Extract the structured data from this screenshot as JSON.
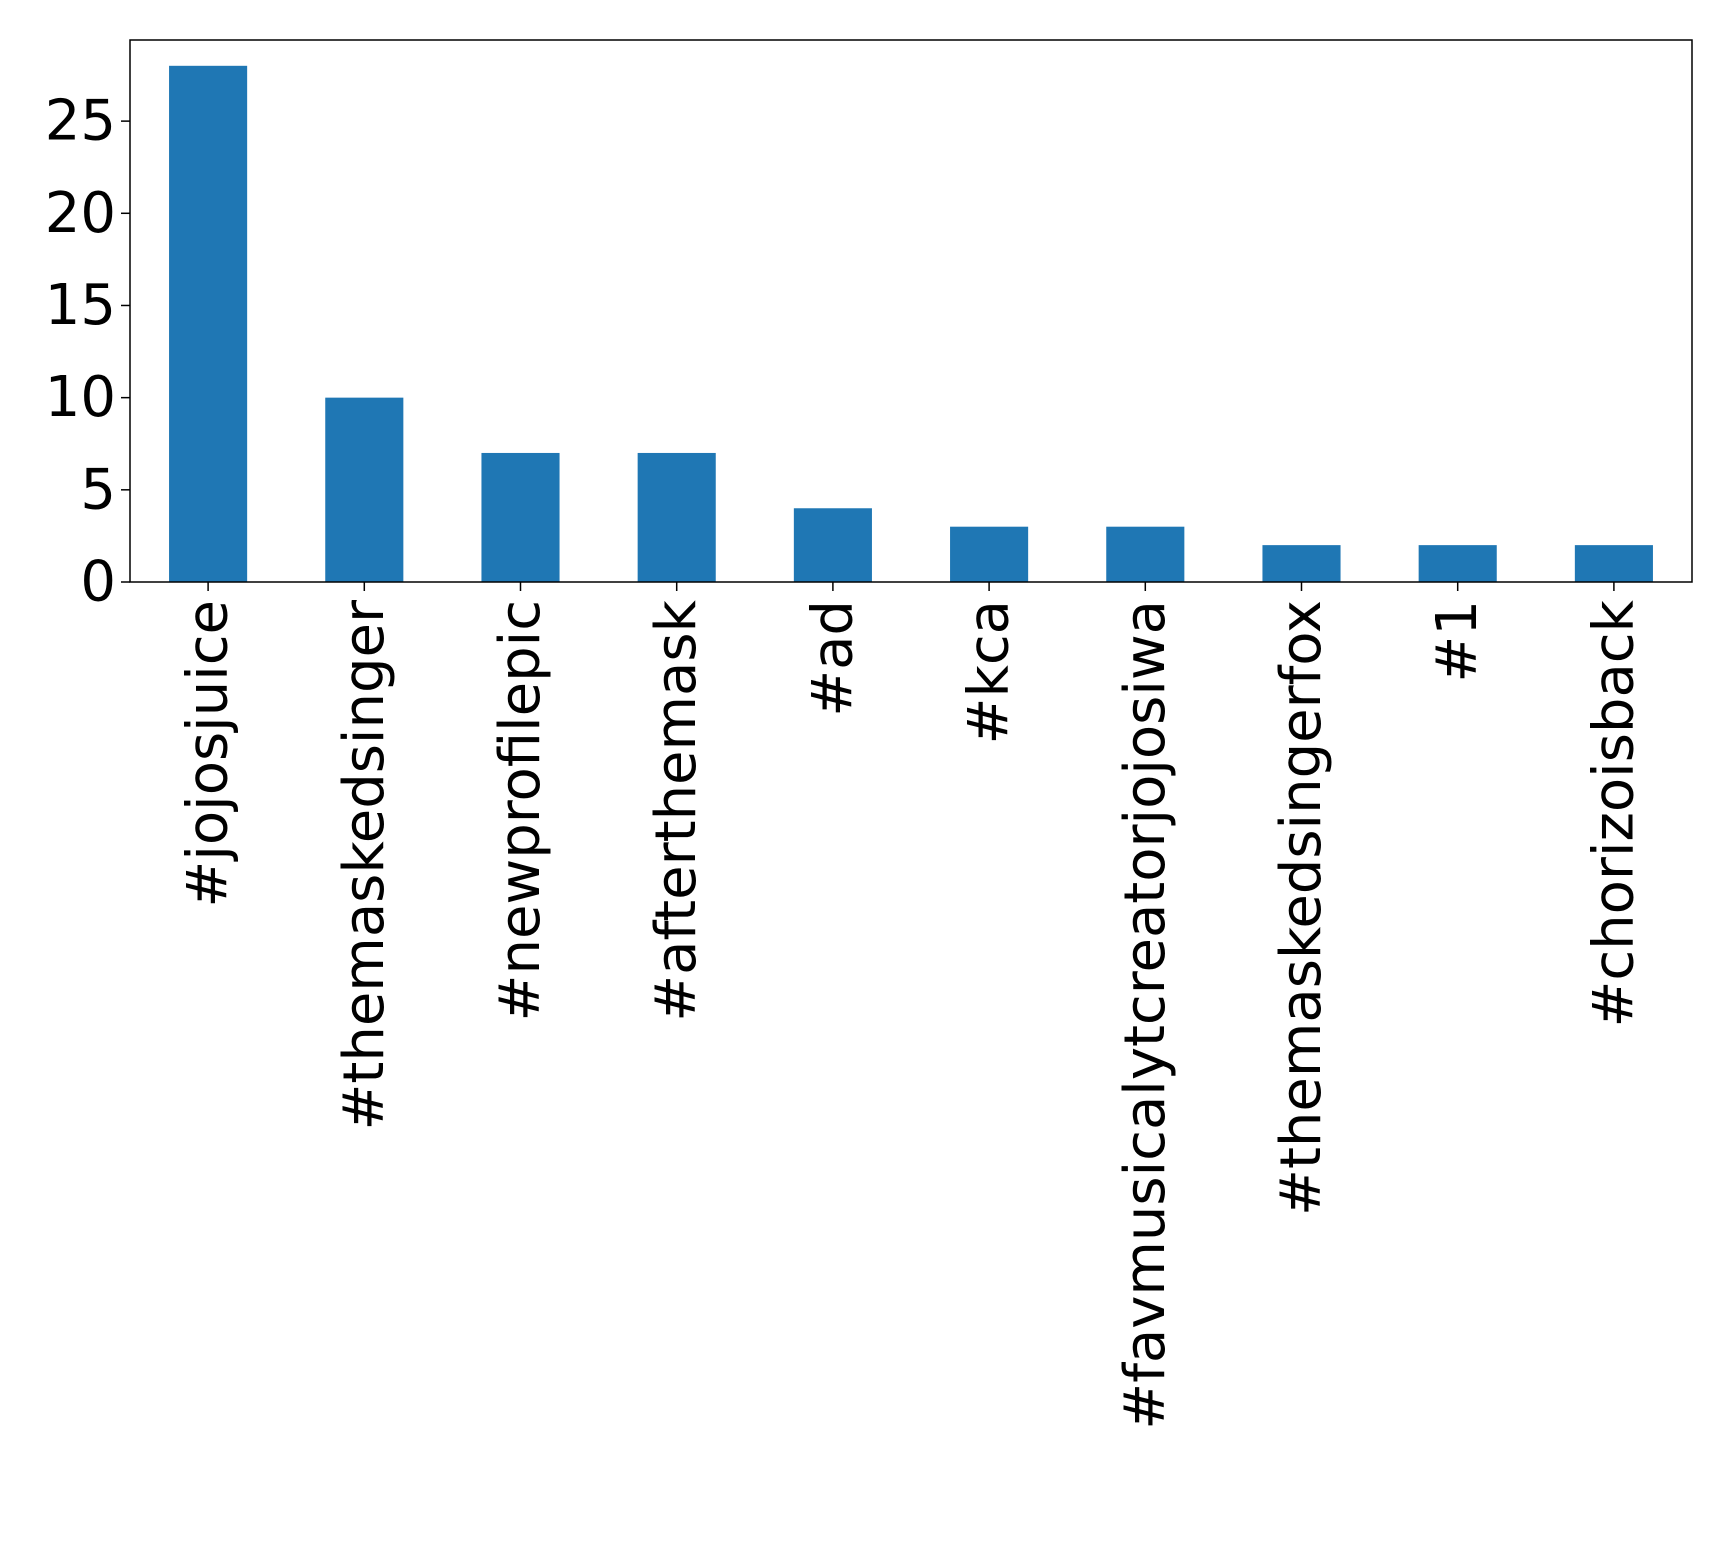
{
  "chart_data": {
    "type": "bar",
    "title": "",
    "xlabel": "",
    "ylabel": "",
    "categories": [
      "#jojosjuice",
      "#themaskedsinger",
      "#newprofilepic",
      "#afterthemask",
      "#ad",
      "#kca",
      "#favmusicalytcreatorjojosiwa",
      "#themaskedsingerfox",
      "#1",
      "#chorizoisback"
    ],
    "values": [
      28,
      10,
      7,
      7,
      4,
      3,
      3,
      2,
      2,
      2
    ],
    "ylim": [
      0,
      29.4
    ],
    "yticks": [
      0,
      5,
      10,
      15,
      20,
      25
    ],
    "bar_color": "#1f77b4",
    "grid": false,
    "legend": "none"
  }
}
